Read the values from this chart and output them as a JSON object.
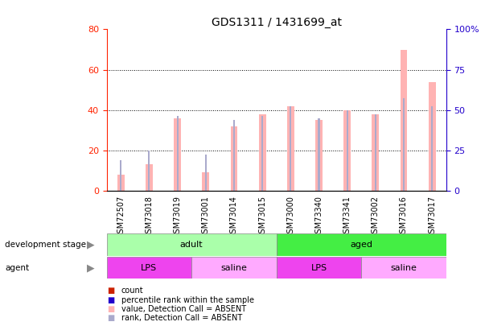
{
  "title": "GDS1311 / 1431699_at",
  "samples": [
    "GSM72507",
    "GSM73018",
    "GSM73019",
    "GSM73001",
    "GSM73014",
    "GSM73015",
    "GSM73000",
    "GSM73340",
    "GSM73341",
    "GSM73002",
    "GSM73016",
    "GSM73017"
  ],
  "bar_values": [
    8,
    13,
    36,
    9,
    32,
    38,
    42,
    35,
    40,
    38,
    70,
    54
  ],
  "rank_values": [
    15,
    20,
    37,
    18,
    35,
    37,
    42,
    36,
    40,
    38,
    46,
    42
  ],
  "left_ylim": [
    0,
    80
  ],
  "right_ylim": [
    0,
    100
  ],
  "left_yticks": [
    0,
    20,
    40,
    60,
    80
  ],
  "right_yticks": [
    0,
    25,
    50,
    75,
    100
  ],
  "bar_color": "#FFB3B3",
  "rank_color": "#AAAACC",
  "left_axis_color": "#FF2200",
  "right_axis_color": "#2200CC",
  "grid_color": "black",
  "dev_groups": [
    {
      "label": "adult",
      "start": 0,
      "end": 6,
      "color": "#AAFFAA"
    },
    {
      "label": "aged",
      "start": 6,
      "end": 12,
      "color": "#44EE44"
    }
  ],
  "agent_groups": [
    {
      "label": "LPS",
      "start": 0,
      "end": 3,
      "color": "#EE44EE"
    },
    {
      "label": "saline",
      "start": 3,
      "end": 6,
      "color": "#FFAAFF"
    },
    {
      "label": "LPS",
      "start": 6,
      "end": 9,
      "color": "#EE44EE"
    },
    {
      "label": "saline",
      "start": 9,
      "end": 12,
      "color": "#FFAAFF"
    }
  ],
  "legend_items": [
    {
      "label": "count",
      "color": "#CC2200"
    },
    {
      "label": "percentile rank within the sample",
      "color": "#2200CC"
    },
    {
      "label": "value, Detection Call = ABSENT",
      "color": "#FFB3B3"
    },
    {
      "label": "rank, Detection Call = ABSENT",
      "color": "#AAAACC"
    }
  ],
  "figsize": [
    6.03,
    4.05
  ],
  "dpi": 100
}
